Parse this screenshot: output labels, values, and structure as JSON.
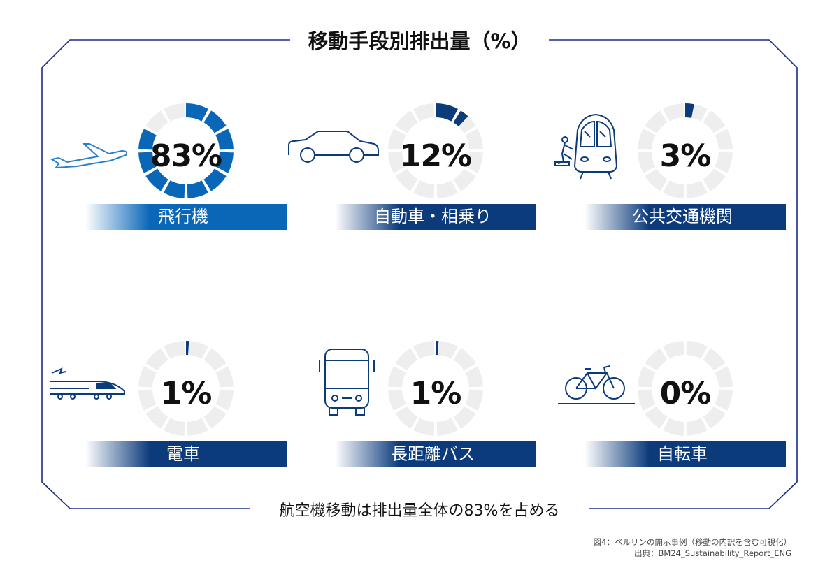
{
  "title": "移動手段別排出量（%）",
  "summary": "航空機移動は排出量全体の83%を占める",
  "caption": {
    "line1": "図4：ベルリンの開示事例（移動の内訳を含む可視化）",
    "line2": "出典：BM24_Sustainability_Report_ENG"
  },
  "colors": {
    "frame": "#1b2b8a",
    "highlight": "#0a67b8",
    "navy": "#0c3b7c",
    "track": "#eeeeee"
  },
  "chart_data": {
    "type": "pie",
    "subtype": "donut",
    "title": "移動手段別排出量（%）",
    "segments_per_ring": 12,
    "categories": [
      "飛行機",
      "自動車・相乗り",
      "公共交通機関",
      "電車",
      "長距離バス",
      "自転車"
    ],
    "values": [
      83,
      12,
      3,
      1,
      1,
      0
    ],
    "labels": [
      "83%",
      "12%",
      "3%",
      "1%",
      "1%",
      "0%"
    ],
    "icons": [
      "airplane-icon",
      "car-icon",
      "tram-icon",
      "bullet-train-icon",
      "bus-icon",
      "bicycle-icon"
    ],
    "unit": "%"
  }
}
